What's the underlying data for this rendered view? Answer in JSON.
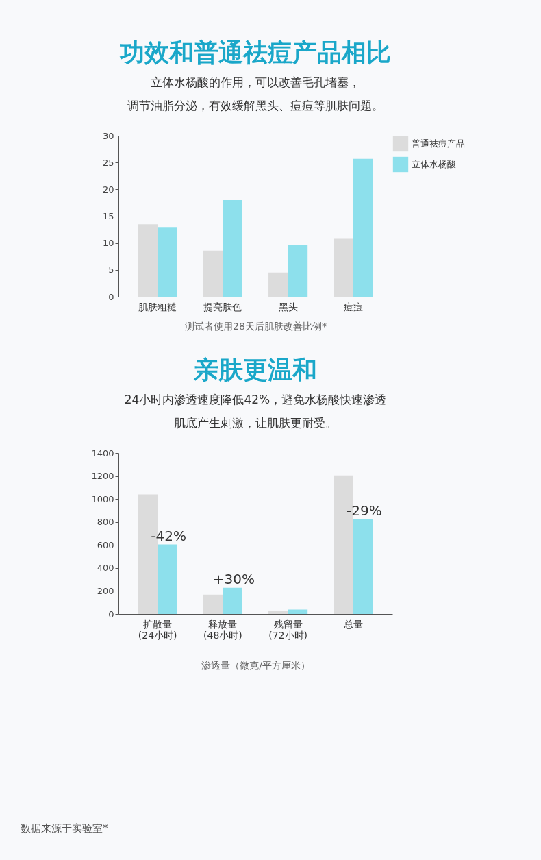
{
  "chart_data": [
    {
      "type": "bar",
      "title": "功效和普通祛痘产品相比",
      "subtitle": [
        "立体水杨酸的作用，可以改善毛孔堵塞，",
        "调节油脂分泌，有效缓解黑头、痘痘等肌肤问题。"
      ],
      "xlabel": "测试者使用28天后肌肤改善比例*",
      "categories": [
        "肌肤粗糙",
        "提亮肤色",
        "黑头",
        "痘痘"
      ],
      "series": [
        {
          "name": "普通祛痘产品",
          "color": "#dcdcdc",
          "values": [
            13.5,
            8.6,
            4.5,
            10.8
          ]
        },
        {
          "name": "立体水杨酸",
          "color": "#8de0ec",
          "values": [
            13,
            18,
            9.6,
            25.7
          ]
        }
      ],
      "ylim": [
        0,
        30
      ],
      "yticks": [
        0,
        5,
        10,
        15,
        20,
        25,
        30
      ],
      "grid": false,
      "legend": "top right"
    },
    {
      "type": "bar",
      "title": "亲肤更温和",
      "subtitle": [
        "24小时内渗透速度降低42%，避免水杨酸快速渗透",
        "肌底产生刺激，让肌肤更耐受。"
      ],
      "xlabel": "渗透量（微克/平方厘米）",
      "categories": [
        "扩散量\n(24小时)",
        "释放量\n(48小时)",
        "残留量\n(72小时)",
        "总量"
      ],
      "series": [
        {
          "color": "#dcdcdc",
          "values": [
            1040,
            168,
            30,
            1205
          ]
        },
        {
          "color": "#8de0ec",
          "values": [
            604,
            228,
            38,
            825
          ]
        }
      ],
      "ylim": [
        0,
        1400
      ],
      "yticks": [
        0,
        200,
        400,
        600,
        800,
        1000,
        1200,
        1400
      ],
      "grid": false,
      "legend": false,
      "annotations": [
        {
          "text": "-42%",
          "x": "扩散量\n(24小时)",
          "y": 604
        },
        {
          "text": "+30%",
          "x": "释放量\n(48小时)",
          "y": 228
        },
        {
          "text": "-29%",
          "x": "总量",
          "y": 825
        },
        "数据来源于实验室*"
      ]
    }
  ]
}
